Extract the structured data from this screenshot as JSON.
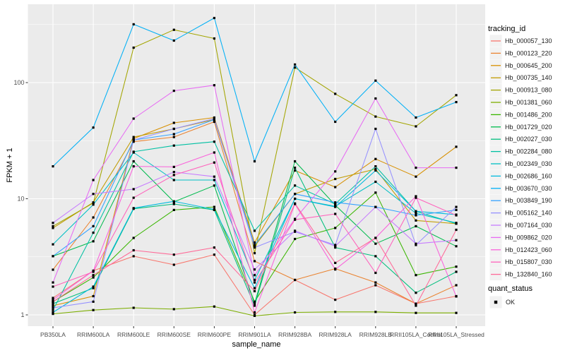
{
  "chart_data": {
    "type": "line",
    "title": "",
    "xlabel": "sample_name",
    "ylabel": "FPKM + 1",
    "y_scale": "log10",
    "y_ticks": [
      1,
      10,
      100
    ],
    "y_tick_labels": [
      "1",
      "10",
      "100"
    ],
    "ylim": [
      0.93,
      470
    ],
    "grid": true,
    "legend_position": "right",
    "point_shape": "filled-square",
    "point_color": "#000000",
    "categories": [
      "PB350LA",
      "RRIM600LA",
      "RRIM600LE",
      "RRIM600SE",
      "RRIM600PE",
      "RRIM901LA",
      "RRIM928BA",
      "RRIM928LA",
      "RRIM928LB",
      "RRII105LA_Control",
      "RRII105LA_Stressed"
    ],
    "series": [
      {
        "name": "Hb_000057_130",
        "color": "#F8766D",
        "values": [
          1.4,
          2.4,
          3.2,
          2.7,
          3.3,
          1.0,
          2.0,
          1.35,
          1.8,
          1.25,
          1.45
        ]
      },
      {
        "name": "Hb_000123_220",
        "color": "#EA8331",
        "values": [
          2.45,
          6.9,
          31,
          34,
          46,
          2.9,
          2.0,
          2.5,
          1.9,
          1.25,
          1.8
        ]
      },
      {
        "name": "Hb_000645_200",
        "color": "#D89000",
        "values": [
          1.2,
          1.45,
          33,
          45,
          50,
          4.2,
          17.5,
          12.6,
          22,
          15.5,
          28
        ]
      },
      {
        "name": "Hb_000735_140",
        "color": "#C09B00",
        "values": [
          5.6,
          9.3,
          34,
          40,
          48,
          3.9,
          11,
          14.8,
          18,
          6.5,
          6.1
        ]
      },
      {
        "name": "Hb_000913_080",
        "color": "#A3A500",
        "values": [
          5.8,
          9.2,
          200,
          285,
          240,
          3.4,
          135,
          80,
          51,
          42,
          78
        ]
      },
      {
        "name": "Hb_001381_060",
        "color": "#7CAE00",
        "values": [
          1.02,
          1.1,
          1.15,
          1.12,
          1.18,
          0.98,
          1.05,
          1.06,
          1.06,
          1.04,
          1.04
        ]
      },
      {
        "name": "Hb_001486_200",
        "color": "#39B600",
        "values": [
          1.3,
          2.1,
          4.6,
          8.0,
          8.5,
          1.3,
          4.5,
          5.6,
          11.3,
          2.2,
          2.6
        ]
      },
      {
        "name": "Hb_001729_020",
        "color": "#00BB4E",
        "values": [
          3.2,
          4.3,
          21,
          9.4,
          13,
          1.25,
          21,
          8.8,
          4.1,
          5.8,
          3.9
        ]
      },
      {
        "name": "Hb_002027_030",
        "color": "#00BF7D",
        "values": [
          1.25,
          1.7,
          8.2,
          9.0,
          8.0,
          1.2,
          18.5,
          3.8,
          3.2,
          1.55,
          2.35
        ]
      },
      {
        "name": "Hb_002284_080",
        "color": "#00C1A3",
        "values": [
          1.1,
          5.1,
          25.4,
          28.7,
          31,
          5.3,
          13,
          9.0,
          19,
          7.8,
          6.1
        ]
      },
      {
        "name": "Hb_002349_030",
        "color": "#00BFC4",
        "values": [
          4.05,
          8.9,
          25,
          14.5,
          14.5,
          2.0,
          10,
          8.6,
          14,
          7.5,
          6.2
        ]
      },
      {
        "name": "Hb_002686_160",
        "color": "#00BADE",
        "values": [
          1.05,
          1.75,
          8.3,
          9.5,
          8.1,
          1.7,
          10,
          8.5,
          17.5,
          7.8,
          7.3
        ]
      },
      {
        "name": "Hb_003670_030",
        "color": "#00B0F6",
        "values": [
          19,
          41,
          318,
          230,
          360,
          21,
          143,
          46,
          104,
          50,
          68
        ]
      },
      {
        "name": "Hb_003849_190",
        "color": "#35A2FF",
        "values": [
          3.2,
          5.8,
          32,
          36,
          48,
          4.0,
          11,
          9.3,
          8.5,
          7.2,
          8.0
        ]
      },
      {
        "name": "Hb_005162_140",
        "color": "#9590FF",
        "values": [
          1.15,
          1.3,
          32,
          40,
          49,
          3.8,
          5.2,
          4.0,
          40,
          4.0,
          8.5
        ]
      },
      {
        "name": "Hb_007164_030",
        "color": "#C77CFF",
        "values": [
          6.2,
          11,
          12.1,
          17,
          15.5,
          2.46,
          5.3,
          3.9,
          8.5,
          4.1,
          4.4
        ]
      },
      {
        "name": "Hb_009862_020",
        "color": "#E76BF3",
        "values": [
          1.9,
          14.5,
          49,
          85,
          95,
          2.2,
          6.7,
          17.2,
          73,
          18.5,
          18.5
        ]
      },
      {
        "name": "Hb_012423_060",
        "color": "#FA62DB",
        "values": [
          1.35,
          2.4,
          19,
          18.8,
          25,
          1.05,
          9.0,
          2.46,
          4.6,
          10.5,
          1.44
        ]
      },
      {
        "name": "Hb_015807_030",
        "color": "#FF62BC",
        "values": [
          1.75,
          2.35,
          10.2,
          16,
          20.5,
          1.9,
          6.6,
          7.4,
          2.3,
          10.2,
          7.2
        ]
      },
      {
        "name": "Hb_132840_160",
        "color": "#FF6A98",
        "values": [
          1.3,
          2.2,
          3.6,
          3.3,
          3.8,
          1.6,
          9.1,
          2.8,
          4.6,
          1.2,
          5.4
        ]
      }
    ]
  },
  "legend": {
    "tracking_title": "tracking_id",
    "quant_title": "quant_status",
    "quant_items": [
      {
        "label": "OK",
        "shape": "filled-square",
        "color": "#000000"
      }
    ]
  },
  "colors": {
    "panel_bg": "#EBEBEB",
    "grid": "#FFFFFF",
    "legend_key_bg": "#F2F2F2",
    "tick_text": "#4D4D4D",
    "tick_mark": "#333333",
    "point": "#000000"
  }
}
